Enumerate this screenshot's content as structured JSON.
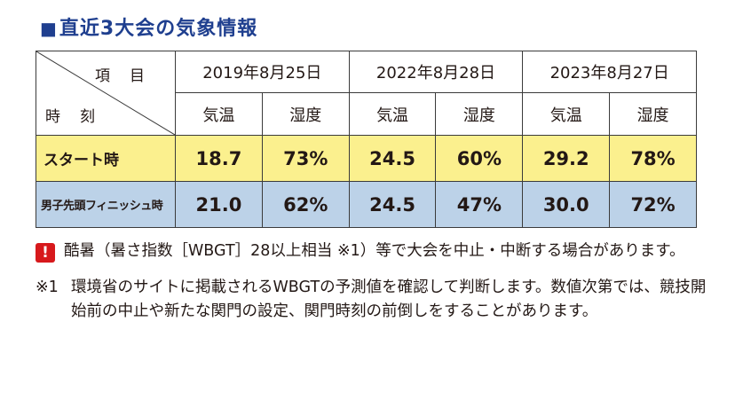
{
  "title": {
    "mark": "■",
    "text": "直近3大会の気象情報"
  },
  "table": {
    "corner": {
      "item": "項目",
      "time": "時刻"
    },
    "dates": [
      "2019年8月25日",
      "2022年8月28日",
      "2023年8月27日"
    ],
    "sub": [
      "気温",
      "湿度",
      "気温",
      "湿度",
      "気温",
      "湿度"
    ],
    "rows": [
      {
        "label": "スタート時",
        "values": [
          "18.7",
          "73%",
          "24.5",
          "60%",
          "29.2",
          "78%"
        ]
      },
      {
        "label": "男子先頭フィニッシュ時",
        "values": [
          "21.0",
          "62%",
          "24.5",
          "47%",
          "30.0",
          "72%"
        ]
      }
    ]
  },
  "notes": {
    "alert_icon": "exclamation-icon",
    "note1": "酷暑（暑さ指数［WBGT］28以上相当 ※1）等で大会を中止・中断する場合があります。",
    "note2_marker": "※1",
    "note2": "環境省のサイトに掲載されるWBGTの予測値を確認して判断します。数値次第では、競技開始前の中止や新たな関門の設定、関門時刻の前倒しをすることがあります。"
  },
  "colors": {
    "title": "#1f3f8f",
    "start_row": "#fbf08e",
    "male_row": "#bcd2e8",
    "alert": "#d7191c"
  }
}
